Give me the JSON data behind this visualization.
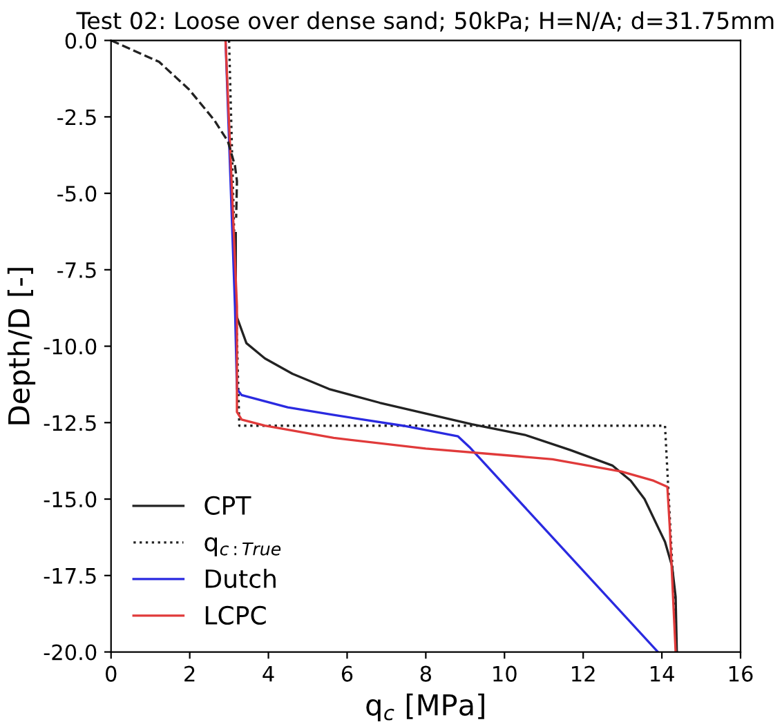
{
  "chart_data": {
    "type": "line",
    "title": "Test 02: Loose over dense sand; 50kPa; H=N/A; d=31.75mm",
    "xlabel": "q$_{c}$ [MPa]",
    "ylabel": "Depth/D [-]",
    "xlim": [
      0,
      16
    ],
    "xticks": [
      0,
      2,
      4,
      6,
      8,
      10,
      12,
      14,
      16
    ],
    "ylim": [
      -20.0,
      0.0
    ],
    "yticks": [
      {
        "value": 0,
        "label": "0.0"
      },
      -2.5,
      {
        "value": -5,
        "label": "-5.0"
      },
      -7.5,
      {
        "value": -10,
        "label": "-10.0"
      },
      -12.5,
      {
        "value": -15,
        "label": "-15.0"
      },
      -17.5,
      {
        "value": -20,
        "label": "-20.0"
      }
    ],
    "grid": false,
    "legend": "bottom left",
    "marker": "none",
    "series": [
      {
        "name": "CPT",
        "color": "#222222",
        "line_style": "solid",
        "x": [
          3.17,
          3.17,
          3.2,
          3.44,
          3.91,
          4.61,
          5.54,
          6.83,
          8.0,
          9.17,
          10.52,
          11.68,
          12.74,
          13.21,
          13.56,
          14.08,
          14.26,
          14.35,
          14.38
        ],
        "values": [
          -6.3,
          -8.7,
          -9.05,
          -9.9,
          -10.4,
          -10.9,
          -11.4,
          -11.85,
          -12.2,
          -12.55,
          -12.9,
          -13.4,
          -13.9,
          -14.4,
          -15.0,
          -16.4,
          -17.2,
          -18.2,
          -20.0
        ]
      },
      {
        "name": "q$_{c:True}$",
        "color": "#222222",
        "line_style": "dotted",
        "x": [
          3.0,
          3.26,
          14.08,
          14.38
        ],
        "values": [
          0.0,
          -12.6,
          -12.6,
          -20.0
        ]
      },
      {
        "name": "Dutch",
        "color": "#2a2ae0",
        "line_style": "solid",
        "x": [
          2.91,
          3.15,
          3.2,
          3.32,
          4.49,
          5.66,
          7.42,
          8.82,
          9.11,
          13.9
        ],
        "values": [
          0.0,
          -8.7,
          -11.4,
          -11.6,
          -12.0,
          -12.25,
          -12.6,
          -12.95,
          -13.3,
          -20.0
        ]
      },
      {
        "name": "LCPC",
        "color": "#e03a3a",
        "line_style": "solid",
        "x": [
          2.91,
          3.2,
          3.2,
          3.32,
          3.91,
          5.66,
          8.0,
          10.34,
          11.22,
          12.97,
          13.79,
          14.14,
          14.2,
          14.35
        ],
        "values": [
          0.0,
          -8.7,
          -12.15,
          -12.4,
          -12.6,
          -13.0,
          -13.35,
          -13.6,
          -13.7,
          -14.1,
          -14.4,
          -14.6,
          -15.9,
          -20.0
        ]
      },
      {
        "color": "#222222",
        "line_style": "dashed",
        "x": [
          0.0,
          1.22,
          1.98,
          2.62,
          2.97,
          3.15,
          3.2,
          3.18
        ],
        "values": [
          0.0,
          -0.7,
          -1.6,
          -2.6,
          -3.3,
          -4.1,
          -4.6,
          -5.8
        ]
      }
    ]
  }
}
